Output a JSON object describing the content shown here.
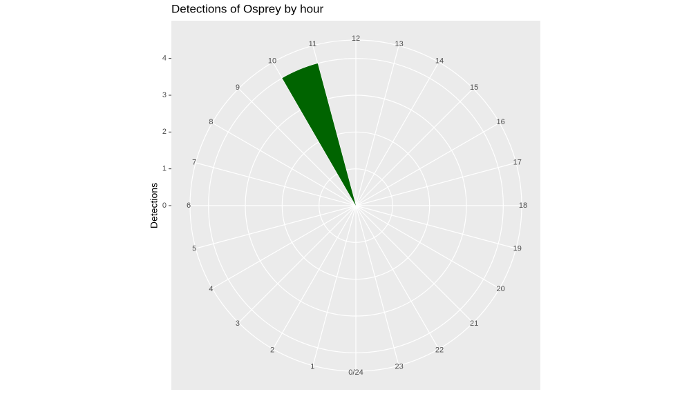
{
  "chart_data": {
    "type": "bar",
    "coord": "polar",
    "title": "Detections of Osprey by hour",
    "y_label": "Detections",
    "x": [
      0,
      1,
      2,
      3,
      4,
      5,
      6,
      7,
      8,
      9,
      10,
      11,
      12,
      13,
      14,
      15,
      16,
      17,
      18,
      19,
      20,
      21,
      22,
      23
    ],
    "values": [
      0,
      0,
      0,
      0,
      0,
      0,
      0,
      0,
      0,
      0,
      4,
      0,
      0,
      0,
      0,
      0,
      0,
      0,
      0,
      0,
      0,
      0,
      0,
      0
    ],
    "color": "#006400",
    "xlim": [
      0,
      24
    ],
    "xticks": [
      {
        "value": 0,
        "label": "0/24"
      },
      1,
      2,
      3,
      4,
      5,
      6,
      7,
      8,
      9,
      10,
      11,
      12,
      13,
      14,
      15,
      16,
      17,
      18,
      19,
      20,
      21,
      22,
      23
    ],
    "ylim": [
      0,
      4.5
    ],
    "yticks": [
      0,
      1,
      2,
      3,
      4
    ],
    "grid": true
  }
}
